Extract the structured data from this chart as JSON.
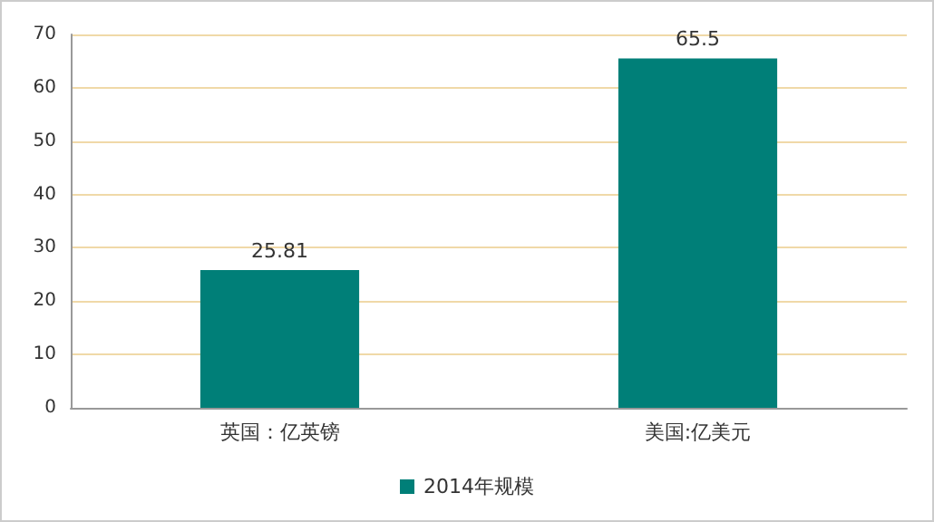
{
  "chart_data": {
    "type": "bar",
    "categories": [
      "英国：亿英镑",
      "美国:亿美元"
    ],
    "series": [
      {
        "name": "2014年规模",
        "color": "#007f78",
        "values": [
          25.81,
          65.5
        ]
      }
    ],
    "ylim": [
      0,
      70
    ],
    "yticks": [
      0,
      10,
      20,
      30,
      40,
      50,
      60,
      70
    ],
    "grid": "y",
    "legend": "bottom",
    "data_labels": true
  }
}
